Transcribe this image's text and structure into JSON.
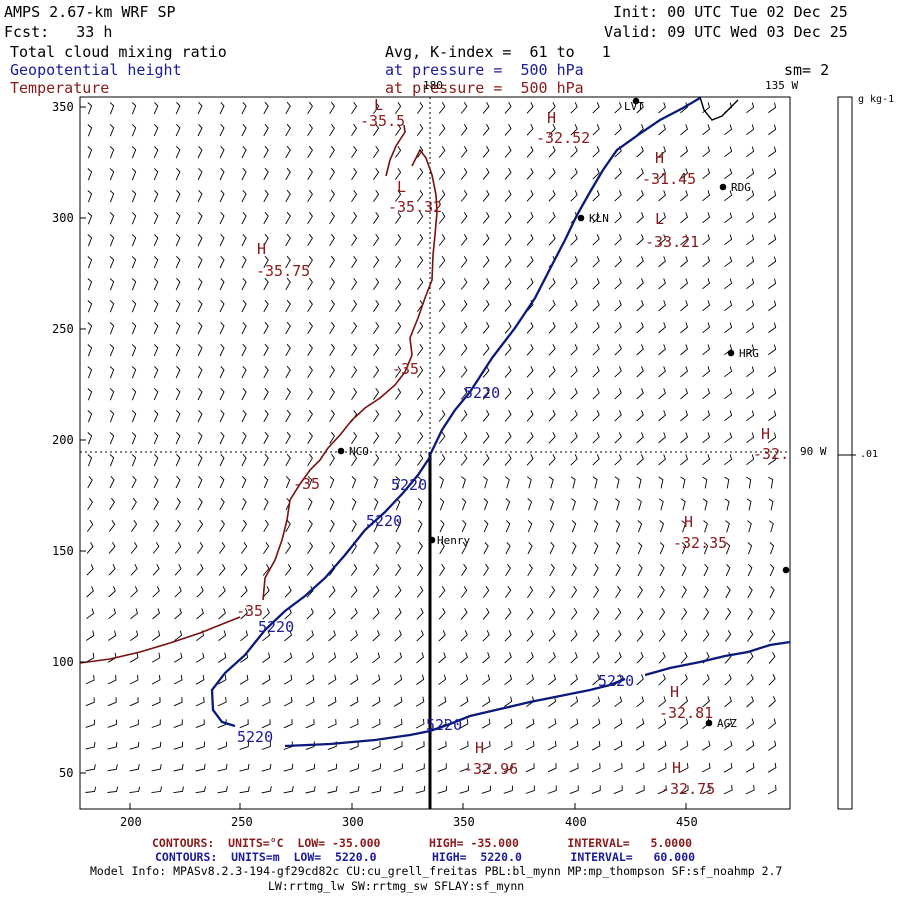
{
  "header": {
    "model": "AMPS 2.67-km WRF SP",
    "forecast": "Fcst:   33 h",
    "field1": "Total cloud mixing ratio",
    "field2": "Geopotential height",
    "field3": "Temperature",
    "avg": "Avg, K-index =  61 to   1",
    "pressure1": "at pressure =  500 hPa",
    "pressure2": "at pressure =  500 hPa",
    "init": "Init: 00 UTC Tue 02 Dec 25",
    "valid": "Valid: 09 UTC Wed 03 Dec 25",
    "smoothing": "sm= 2"
  },
  "colors": {
    "height_contour": "#0a1a7a",
    "temperature_contour": "#7a0f0f",
    "station": "#000000"
  },
  "map": {
    "x_ticks": [
      "200",
      "250",
      "300",
      "350",
      "400",
      "450"
    ],
    "y_ticks": [
      "350",
      "300",
      "250",
      "200",
      "150",
      "100",
      "50"
    ],
    "meridian_labels": {
      "lon180": "180",
      "lon135": "135 W",
      "lon90": "90 W"
    },
    "colorbar": {
      "unit": "g kg-1",
      "value": ".01"
    },
    "stations": [
      "LVT",
      "RDG",
      "KLN",
      "HRG",
      "NCO",
      "Henry",
      "AGZ"
    ],
    "height_labels": [
      "5220",
      "5220",
      "5220",
      "5220",
      "5220",
      "5220",
      "5220"
    ],
    "temp_labels": [
      "-35.5",
      "-35.32",
      "-35.75",
      "-35",
      "-35",
      "-35",
      "-32.52",
      "-31.45",
      "-33.21",
      "-32.",
      "-32.35",
      "-32.81",
      "-32.96",
      "-32.75"
    ],
    "extrema_symbols": [
      "L",
      "L",
      "H",
      "H",
      "H",
      "L",
      "H",
      "H",
      "H",
      "H",
      "H"
    ]
  },
  "footer": {
    "contours_temp": "CONTOURS:  UNITS=°C  LOW= -35.000       HIGH= -35.000       INTERVAL=   5.0000",
    "contours_height": "CONTOURS:  UNITS=m  LOW=  5220.0        HIGH=  5220.0       INTERVAL=   60.000",
    "model_info": "Model Info: MPASv8.2.3-194-gf29cd82c CU:cu_grell_freitas PBL:bl_mynn MP:mp_thompson SF:sf_noahmp 2.7",
    "model_info2": "LW:rrtmg_lw SW:rrtmg_sw SFLAY:sf_mynn"
  }
}
